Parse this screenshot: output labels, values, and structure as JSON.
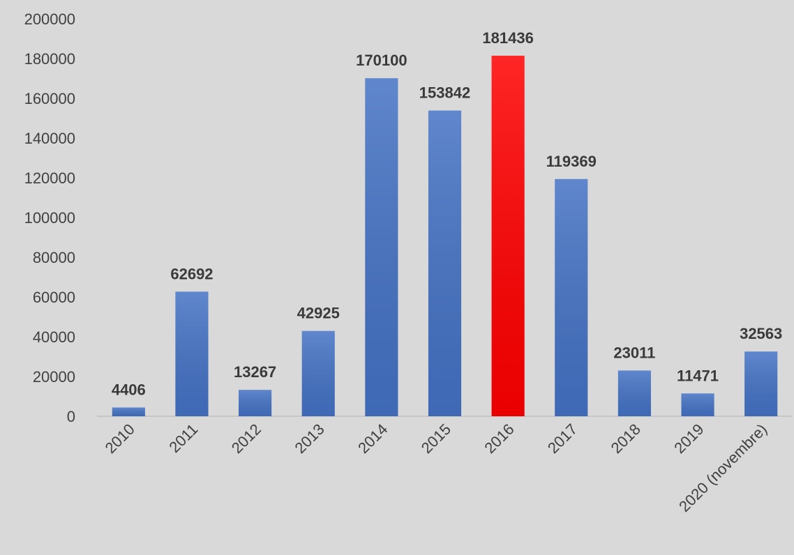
{
  "chart_data": {
    "type": "bar",
    "categories": [
      "2010",
      "2011",
      "2012",
      "2013",
      "2014",
      "2015",
      "2016",
      "2017",
      "2018",
      "2019",
      "2020 (novembre)"
    ],
    "values": [
      4406,
      62692,
      13267,
      42925,
      170100,
      153842,
      181436,
      119369,
      23011,
      11471,
      32563
    ],
    "colors": [
      "#4472c4",
      "#4472c4",
      "#4472c4",
      "#4472c4",
      "#4472c4",
      "#4472c4",
      "#ff0000",
      "#4472c4",
      "#4472c4",
      "#4472c4",
      "#4472c4"
    ],
    "ylim": [
      0,
      200000
    ],
    "yticks": [
      0,
      20000,
      40000,
      60000,
      80000,
      100000,
      120000,
      140000,
      160000,
      180000,
      200000
    ],
    "grid": false
  }
}
